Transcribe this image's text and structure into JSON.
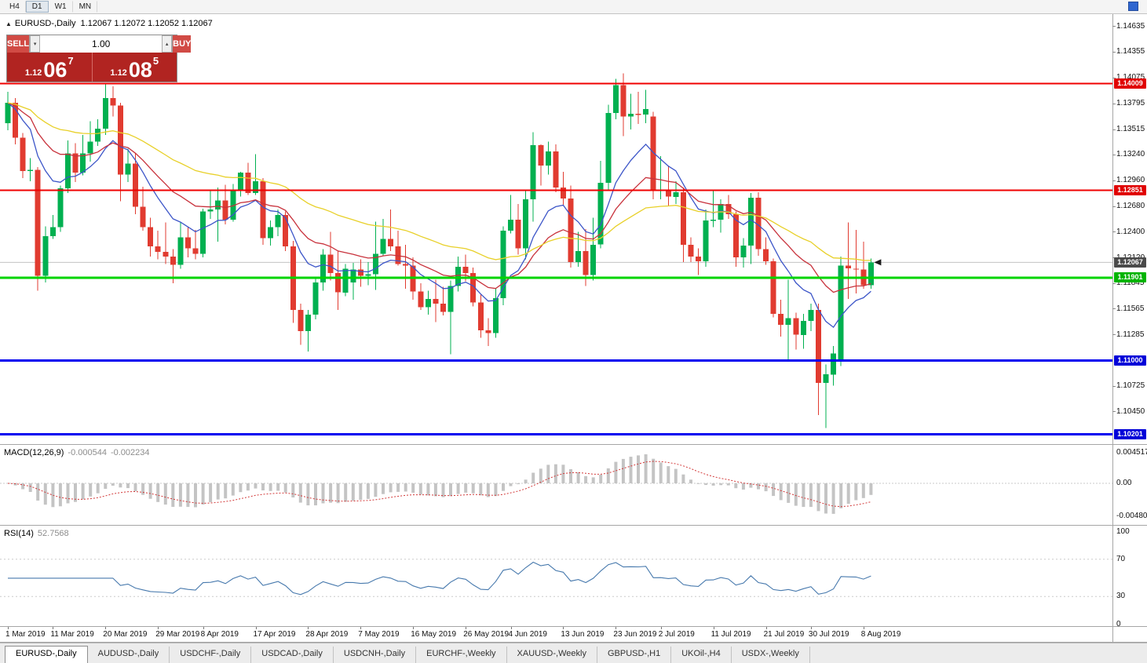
{
  "toolbar": {
    "timeframes": [
      "H4",
      "D1",
      "W1",
      "MN"
    ],
    "active_timeframe": "D1"
  },
  "chart_header": {
    "collapse_icon": "▲",
    "symbol_title": "EURUSD-,Daily",
    "ohlc": "1.12067 1.12072 1.12052 1.12067"
  },
  "trade_panel": {
    "sell_label": "SELL",
    "buy_label": "BUY",
    "volume": "1.00",
    "down_icon": "▾",
    "up_icon": "▴",
    "sell_price": {
      "prefix": "1.12",
      "big": "06",
      "sup": "7"
    },
    "buy_price": {
      "prefix": "1.12",
      "big": "08",
      "sup": "5"
    }
  },
  "price_axis": {
    "labels": [
      "1.14635",
      "1.14355",
      "1.14075",
      "1.13795",
      "1.13515",
      "1.13240",
      "1.12960",
      "1.12680",
      "1.12400",
      "1.12120",
      "1.11845",
      "1.11565",
      "1.11285",
      "1.10725",
      "1.10450"
    ],
    "badges": [
      {
        "text": "1.14009",
        "color": "#e00000",
        "name": "resistance-badge"
      },
      {
        "text": "1.12851",
        "color": "#e00000",
        "name": "resistance-badge"
      },
      {
        "text": "1.12067",
        "color": "#4a4a4a",
        "name": "current-price-badge"
      },
      {
        "text": "1.11901",
        "color": "#00b400",
        "name": "support-badge"
      },
      {
        "text": "1.11000",
        "color": "#0000d8",
        "name": "support-badge"
      },
      {
        "text": "1.10201",
        "color": "#0000d8",
        "name": "support-badge"
      }
    ]
  },
  "macd": {
    "name": "MACD(12,26,9)",
    "value_main": "-0.000544",
    "value_signal": "-0.002234",
    "axis_labels": [
      "0.004517",
      "0.00",
      "-0.004806"
    ],
    "histogram_color": "#c4c4c4",
    "signal_color": "#d23a3a"
  },
  "rsi": {
    "name": "RSI(14)",
    "value": "52.7568",
    "axis_labels": [
      "100",
      "70",
      "30",
      "0"
    ],
    "levels": [
      70,
      30
    ],
    "line_color": "#4779ad"
  },
  "tabs": [
    {
      "label": "EURUSD-,Daily",
      "active": true
    },
    {
      "label": "AUDUSD-,Daily",
      "active": false
    },
    {
      "label": "USDCHF-,Daily",
      "active": false
    },
    {
      "label": "USDCAD-,Daily",
      "active": false
    },
    {
      "label": "USDCNH-,Daily",
      "active": false
    },
    {
      "label": "EURCHF-,Weekly",
      "active": false
    },
    {
      "label": "XAUUSD-,Weekly",
      "active": false
    },
    {
      "label": "GBPUSD-,H1",
      "active": false
    },
    {
      "label": "UKOil-,H4",
      "active": false
    },
    {
      "label": "USDX-,Weekly",
      "active": false
    }
  ],
  "chart_data": {
    "type": "candlestick",
    "symbol": "EURUSD",
    "timeframe": "Daily",
    "price_range": {
      "min": 1.1012,
      "max": 1.1476
    },
    "up_color": "#00b050",
    "down_color": "#e13b30",
    "current_price": 1.12067,
    "h_lines": [
      {
        "price": 1.14009,
        "color": "#f00000",
        "width": 2
      },
      {
        "price": 1.12851,
        "color": "#f00000",
        "width": 2
      },
      {
        "price": 1.11901,
        "color": "#00d400",
        "width": 3
      },
      {
        "price": 1.11,
        "color": "#0000f0",
        "width": 3
      },
      {
        "price": 1.10201,
        "color": "#0000f0",
        "width": 3
      }
    ],
    "moving_averages": [
      {
        "period": 10,
        "color": "#3c55c8"
      },
      {
        "period": 20,
        "color": "#c8323c"
      },
      {
        "period": 45,
        "color": "#e8d028"
      }
    ],
    "x_labels": [
      {
        "text": "1 Mar 2019",
        "i": 0
      },
      {
        "text": "11 Mar 2019",
        "i": 6
      },
      {
        "text": "20 Mar 2019",
        "i": 13
      },
      {
        "text": "29 Mar 2019",
        "i": 20
      },
      {
        "text": "8 Apr 2019",
        "i": 26
      },
      {
        "text": "17 Apr 2019",
        "i": 33
      },
      {
        "text": "28 Apr 2019",
        "i": 40
      },
      {
        "text": "7 May 2019",
        "i": 47
      },
      {
        "text": "16 May 2019",
        "i": 54
      },
      {
        "text": "26 May 2019",
        "i": 61
      },
      {
        "text": "4 Jun 2019",
        "i": 67
      },
      {
        "text": "13 Jun 2019",
        "i": 74
      },
      {
        "text": "23 Jun 2019",
        "i": 81
      },
      {
        "text": "2 Jul 2019",
        "i": 87
      },
      {
        "text": "11 Jul 2019",
        "i": 94
      },
      {
        "text": "21 Jul 2019",
        "i": 101
      },
      {
        "text": "30 Jul 2019",
        "i": 107
      },
      {
        "text": "8 Aug 2019",
        "i": 114
      }
    ],
    "candles": [
      [
        1.1358,
        1.1392,
        1.135,
        1.138
      ],
      [
        1.138,
        1.1385,
        1.1335,
        1.1342
      ],
      [
        1.1342,
        1.1347,
        1.1298,
        1.1306
      ],
      [
        1.1306,
        1.132,
        1.1295,
        1.1307
      ],
      [
        1.1307,
        1.131,
        1.1176,
        1.1192
      ],
      [
        1.1192,
        1.1246,
        1.1185,
        1.1235
      ],
      [
        1.1235,
        1.1258,
        1.1232,
        1.1245
      ],
      [
        1.1245,
        1.129,
        1.124,
        1.1287
      ],
      [
        1.1287,
        1.1339,
        1.1282,
        1.1325
      ],
      [
        1.1325,
        1.1336,
        1.1294,
        1.1304
      ],
      [
        1.1304,
        1.1345,
        1.1301,
        1.1325
      ],
      [
        1.1325,
        1.136,
        1.1316,
        1.1338
      ],
      [
        1.1338,
        1.1362,
        1.1333,
        1.1352
      ],
      [
        1.1352,
        1.1401,
        1.1345,
        1.1385
      ],
      [
        1.1385,
        1.1398,
        1.1365,
        1.1377
      ],
      [
        1.1377,
        1.138,
        1.1273,
        1.1302
      ],
      [
        1.1302,
        1.133,
        1.1294,
        1.1314
      ],
      [
        1.1314,
        1.1325,
        1.1259,
        1.1267
      ],
      [
        1.1267,
        1.1289,
        1.1241,
        1.1245
      ],
      [
        1.1245,
        1.1255,
        1.1213,
        1.1224
      ],
      [
        1.1224,
        1.1241,
        1.121,
        1.1218
      ],
      [
        1.1218,
        1.125,
        1.1205,
        1.1213
      ],
      [
        1.1213,
        1.1221,
        1.1184,
        1.1204
      ],
      [
        1.1204,
        1.125,
        1.12,
        1.1234
      ],
      [
        1.1234,
        1.1245,
        1.1212,
        1.1222
      ],
      [
        1.1222,
        1.1242,
        1.121,
        1.1216
      ],
      [
        1.1216,
        1.1265,
        1.1212,
        1.1262
      ],
      [
        1.1262,
        1.1285,
        1.1254,
        1.1264
      ],
      [
        1.1264,
        1.1288,
        1.1229,
        1.1274
      ],
      [
        1.1274,
        1.1291,
        1.1248,
        1.1253
      ],
      [
        1.1253,
        1.1292,
        1.1251,
        1.1285
      ],
      [
        1.1285,
        1.1305,
        1.1278,
        1.1304
      ],
      [
        1.1304,
        1.1315,
        1.128,
        1.1282
      ],
      [
        1.1282,
        1.1324,
        1.128,
        1.1295
      ],
      [
        1.1295,
        1.1298,
        1.1226,
        1.1233
      ],
      [
        1.1233,
        1.1252,
        1.1225,
        1.1245
      ],
      [
        1.1245,
        1.1264,
        1.1235,
        1.1258
      ],
      [
        1.1258,
        1.1262,
        1.1219,
        1.1224
      ],
      [
        1.1224,
        1.123,
        1.1141,
        1.1155
      ],
      [
        1.1155,
        1.1162,
        1.1117,
        1.1132
      ],
      [
        1.1132,
        1.1155,
        1.111,
        1.115
      ],
      [
        1.115,
        1.119,
        1.1145,
        1.1185
      ],
      [
        1.1185,
        1.1221,
        1.1176,
        1.1215
      ],
      [
        1.1215,
        1.124,
        1.1187,
        1.1195
      ],
      [
        1.1195,
        1.1219,
        1.1155,
        1.1174
      ],
      [
        1.1174,
        1.1205,
        1.117,
        1.12
      ],
      [
        1.1185,
        1.1206,
        1.1166,
        1.1199
      ],
      [
        1.1199,
        1.121,
        1.118,
        1.1192
      ],
      [
        1.1192,
        1.1207,
        1.1182,
        1.1194
      ],
      [
        1.1194,
        1.1251,
        1.1177,
        1.1216
      ],
      [
        1.1216,
        1.1254,
        1.1214,
        1.1232
      ],
      [
        1.1232,
        1.1264,
        1.1219,
        1.1224
      ],
      [
        1.1224,
        1.1241,
        1.1203,
        1.1205
      ],
      [
        1.1205,
        1.1226,
        1.1178,
        1.1203
      ],
      [
        1.1203,
        1.1212,
        1.1166,
        1.1175
      ],
      [
        1.1175,
        1.1184,
        1.1155,
        1.1158
      ],
      [
        1.1158,
        1.1176,
        1.115,
        1.1167
      ],
      [
        1.1167,
        1.1188,
        1.1142,
        1.1162
      ],
      [
        1.1162,
        1.118,
        1.1149,
        1.1153
      ],
      [
        1.1153,
        1.1187,
        1.1107,
        1.1181
      ],
      [
        1.1181,
        1.1213,
        1.1175,
        1.1202
      ],
      [
        1.1202,
        1.1215,
        1.1186,
        1.1195
      ],
      [
        1.1195,
        1.1201,
        1.1159,
        1.1163
      ],
      [
        1.1163,
        1.1172,
        1.1125,
        1.1133
      ],
      [
        1.1133,
        1.1146,
        1.1116,
        1.113
      ],
      [
        1.113,
        1.1178,
        1.1125,
        1.1168
      ],
      [
        1.1168,
        1.1246,
        1.116,
        1.1241
      ],
      [
        1.1241,
        1.128,
        1.1238,
        1.1253
      ],
      [
        1.1253,
        1.127,
        1.1215,
        1.1222
      ],
      [
        1.1222,
        1.1286,
        1.121,
        1.1275
      ],
      [
        1.1275,
        1.1348,
        1.1251,
        1.1334
      ],
      [
        1.1334,
        1.1335,
        1.129,
        1.1312
      ],
      [
        1.1312,
        1.1338,
        1.1302,
        1.1327
      ],
      [
        1.1327,
        1.1335,
        1.1283,
        1.1288
      ],
      [
        1.1288,
        1.1305,
        1.1268,
        1.1276
      ],
      [
        1.1276,
        1.129,
        1.1201,
        1.1207
      ],
      [
        1.1207,
        1.124,
        1.1202,
        1.1219
      ],
      [
        1.1219,
        1.1243,
        1.1181,
        1.1193
      ],
      [
        1.1193,
        1.1255,
        1.1187,
        1.1226
      ],
      [
        1.1226,
        1.1317,
        1.1222,
        1.1293
      ],
      [
        1.1293,
        1.1378,
        1.1285,
        1.1369
      ],
      [
        1.1369,
        1.1406,
        1.1362,
        1.1399
      ],
      [
        1.1399,
        1.1412,
        1.1344,
        1.1365
      ],
      [
        1.1365,
        1.139,
        1.1351,
        1.1368
      ],
      [
        1.1368,
        1.1392,
        1.1357,
        1.1367
      ],
      [
        1.1367,
        1.1394,
        1.1358,
        1.1373
      ],
      [
        1.1365,
        1.137,
        1.1275,
        1.1285
      ],
      [
        1.1285,
        1.1322,
        1.1275,
        1.1286
      ],
      [
        1.1286,
        1.1312,
        1.1268,
        1.1278
      ],
      [
        1.1278,
        1.1295,
        1.127,
        1.1283
      ],
      [
        1.1283,
        1.1288,
        1.1207,
        1.1226
      ],
      [
        1.1226,
        1.1234,
        1.1207,
        1.1213
      ],
      [
        1.1213,
        1.1222,
        1.1193,
        1.1208
      ],
      [
        1.1208,
        1.1264,
        1.1202,
        1.1252
      ],
      [
        1.1252,
        1.1285,
        1.1245,
        1.1253
      ],
      [
        1.1253,
        1.1275,
        1.1239,
        1.127
      ],
      [
        1.127,
        1.128,
        1.1254,
        1.1259
      ],
      [
        1.1259,
        1.1262,
        1.1202,
        1.1212
      ],
      [
        1.1212,
        1.1233,
        1.1201,
        1.1225
      ],
      [
        1.1225,
        1.1282,
        1.1205,
        1.1277
      ],
      [
        1.1277,
        1.1283,
        1.1214,
        1.1221
      ],
      [
        1.1221,
        1.1234,
        1.1204,
        1.1208
      ],
      [
        1.1208,
        1.1211,
        1.1147,
        1.1151
      ],
      [
        1.1151,
        1.1166,
        1.1126,
        1.1139
      ],
      [
        1.1139,
        1.1188,
        1.1101,
        1.1146
      ],
      [
        1.1146,
        1.1152,
        1.1112,
        1.1128
      ],
      [
        1.1128,
        1.1151,
        1.1113,
        1.1143
      ],
      [
        1.1143,
        1.1162,
        1.1132,
        1.1155
      ],
      [
        1.1155,
        1.1162,
        1.1041,
        1.1076
      ],
      [
        1.1076,
        1.1096,
        1.1027,
        1.1085
      ],
      [
        1.1085,
        1.1116,
        1.1073,
        1.1108
      ],
      [
        1.11,
        1.1213,
        1.1094,
        1.1203
      ],
      [
        1.1203,
        1.125,
        1.1167,
        1.12
      ],
      [
        1.12,
        1.1242,
        1.1173,
        1.1199
      ],
      [
        1.1199,
        1.1229,
        1.1178,
        1.1182
      ],
      [
        1.1182,
        1.1211,
        1.1178,
        1.12067
      ]
    ]
  }
}
